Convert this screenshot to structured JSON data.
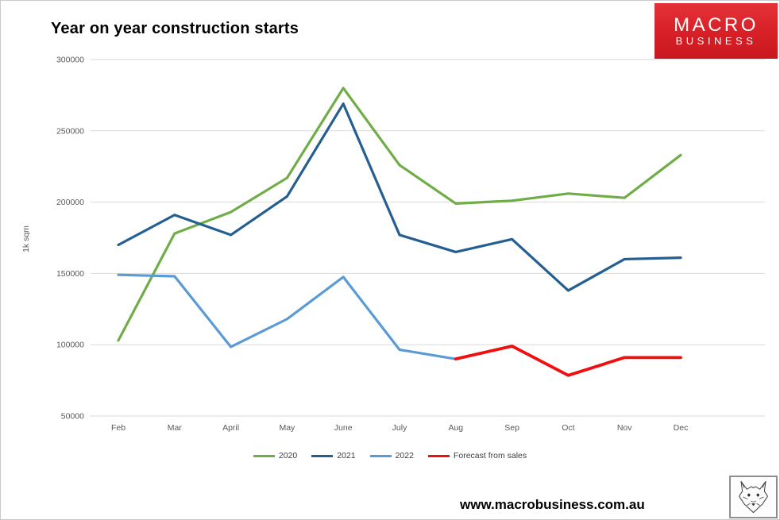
{
  "title": "Year on year construction starts",
  "logo": {
    "line1": "MACRO",
    "line2": "BUSINESS",
    "bg_color": "#D71F27"
  },
  "footer": {
    "website": "www.macrobusiness.com.au"
  },
  "colors": {
    "gridline": "#d9d9d9",
    "tick_text": "#595959"
  },
  "chart_data": {
    "type": "line",
    "title": "Year on year construction starts",
    "xlabel": "",
    "ylabel": "1k sqm",
    "categories": [
      "Feb",
      "Mar",
      "April",
      "May",
      "June",
      "July",
      "Aug",
      "Sep",
      "Oct",
      "Nov",
      "Dec"
    ],
    "y_ticks": [
      50000,
      100000,
      150000,
      200000,
      250000,
      300000
    ],
    "ylim": [
      50000,
      300000
    ],
    "grid": true,
    "legend_position": "bottom",
    "series": [
      {
        "name": "2020",
        "color": "#70AD47",
        "values": [
          103000,
          178000,
          193000,
          217000,
          280000,
          226000,
          199000,
          201000,
          206000,
          203000,
          233000
        ]
      },
      {
        "name": "2021",
        "color": "#255E91",
        "values": [
          170000,
          191000,
          177000,
          204000,
          269000,
          177000,
          165000,
          174000,
          138000,
          160000,
          161000
        ]
      },
      {
        "name": "2022",
        "color": "#5B9BD5",
        "values": [
          149000,
          148000,
          98500,
          118000,
          147500,
          96500,
          90000,
          null,
          null,
          null,
          null
        ]
      },
      {
        "name": "Forecast from sales",
        "color": "#F00E0E",
        "values": [
          null,
          null,
          null,
          null,
          null,
          null,
          90000,
          99000,
          78500,
          91000,
          91000
        ]
      }
    ]
  }
}
